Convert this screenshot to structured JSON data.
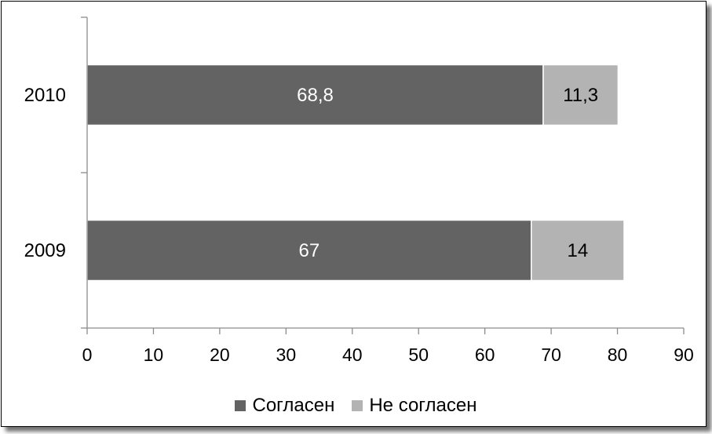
{
  "chart_data": {
    "type": "bar",
    "orientation": "horizontal",
    "stacked": true,
    "categories": [
      "2010",
      "2009"
    ],
    "series": [
      {
        "name": "Согласен",
        "values": [
          68.8,
          67
        ],
        "labels": [
          "68,8",
          "67"
        ],
        "color": "#636363",
        "label_color": "#ffffff"
      },
      {
        "name": "Не согласен",
        "values": [
          11.3,
          14
        ],
        "labels": [
          "11,3",
          "14"
        ],
        "color": "#b3b3b3",
        "label_color": "#000000"
      }
    ],
    "xlim": [
      0,
      90
    ],
    "x_ticks": [
      "0",
      "10",
      "20",
      "30",
      "40",
      "50",
      "60",
      "70",
      "80",
      "90"
    ],
    "grid": false,
    "legend_position": "bottom"
  }
}
